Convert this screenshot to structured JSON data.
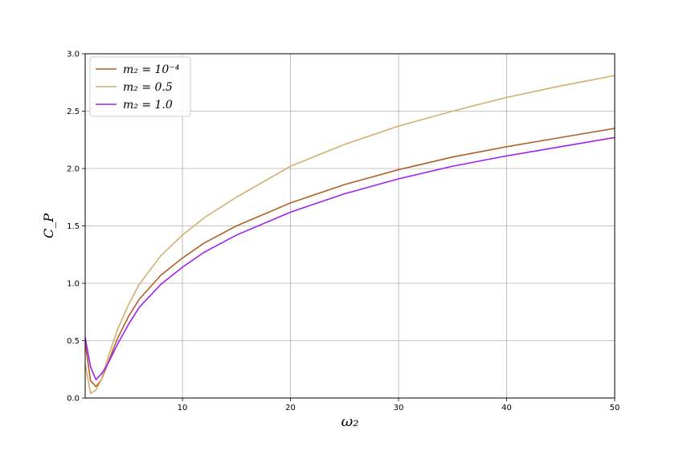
{
  "chart_data": {
    "type": "line",
    "title": "",
    "xlabel": "ω₂",
    "ylabel": "C_P",
    "xlim": [
      1,
      50
    ],
    "ylim": [
      0,
      3.0
    ],
    "xticks": [
      10,
      20,
      30,
      40,
      50
    ],
    "yticks": [
      0.0,
      0.5,
      1.0,
      1.5,
      2.0,
      2.5,
      3.0
    ],
    "xtick_labels": [
      "10",
      "20",
      "30",
      "40",
      "50"
    ],
    "ytick_labels": [
      "0.0",
      "0.5",
      "1.0",
      "1.5",
      "2.0",
      "2.5",
      "3.0"
    ],
    "grid": true,
    "legend_position": "top-left",
    "series": [
      {
        "name": "m₂ = 10⁻⁴",
        "color": "#b0602a",
        "x": [
          1,
          1.5,
          2,
          2.5,
          3,
          4,
          5,
          6,
          8,
          10,
          12,
          15,
          20,
          25,
          30,
          35,
          40,
          45,
          50
        ],
        "y": [
          0.48,
          0.15,
          0.1,
          0.16,
          0.28,
          0.52,
          0.71,
          0.86,
          1.07,
          1.22,
          1.35,
          1.5,
          1.7,
          1.86,
          1.99,
          2.1,
          2.19,
          2.27,
          2.35
        ]
      },
      {
        "name": "m₂ = 0.5",
        "color": "#d2b06e",
        "x": [
          1,
          1.5,
          2,
          2.5,
          3,
          4,
          5,
          6,
          8,
          10,
          12,
          15,
          20,
          25,
          30,
          35,
          40,
          45,
          50
        ],
        "y": [
          0.3,
          0.04,
          0.07,
          0.16,
          0.32,
          0.6,
          0.81,
          0.99,
          1.24,
          1.42,
          1.57,
          1.75,
          2.02,
          2.21,
          2.37,
          2.5,
          2.62,
          2.72,
          2.81
        ]
      },
      {
        "name": "m₂ = 1.0",
        "color": "#a020f0",
        "x": [
          1,
          1.5,
          2,
          2.5,
          3,
          4,
          5,
          6,
          8,
          10,
          12,
          15,
          20,
          25,
          30,
          35,
          40,
          45,
          50
        ],
        "y": [
          0.53,
          0.27,
          0.16,
          0.21,
          0.28,
          0.47,
          0.64,
          0.79,
          0.99,
          1.14,
          1.27,
          1.42,
          1.62,
          1.78,
          1.91,
          2.02,
          2.11,
          2.19,
          2.27
        ]
      }
    ]
  }
}
